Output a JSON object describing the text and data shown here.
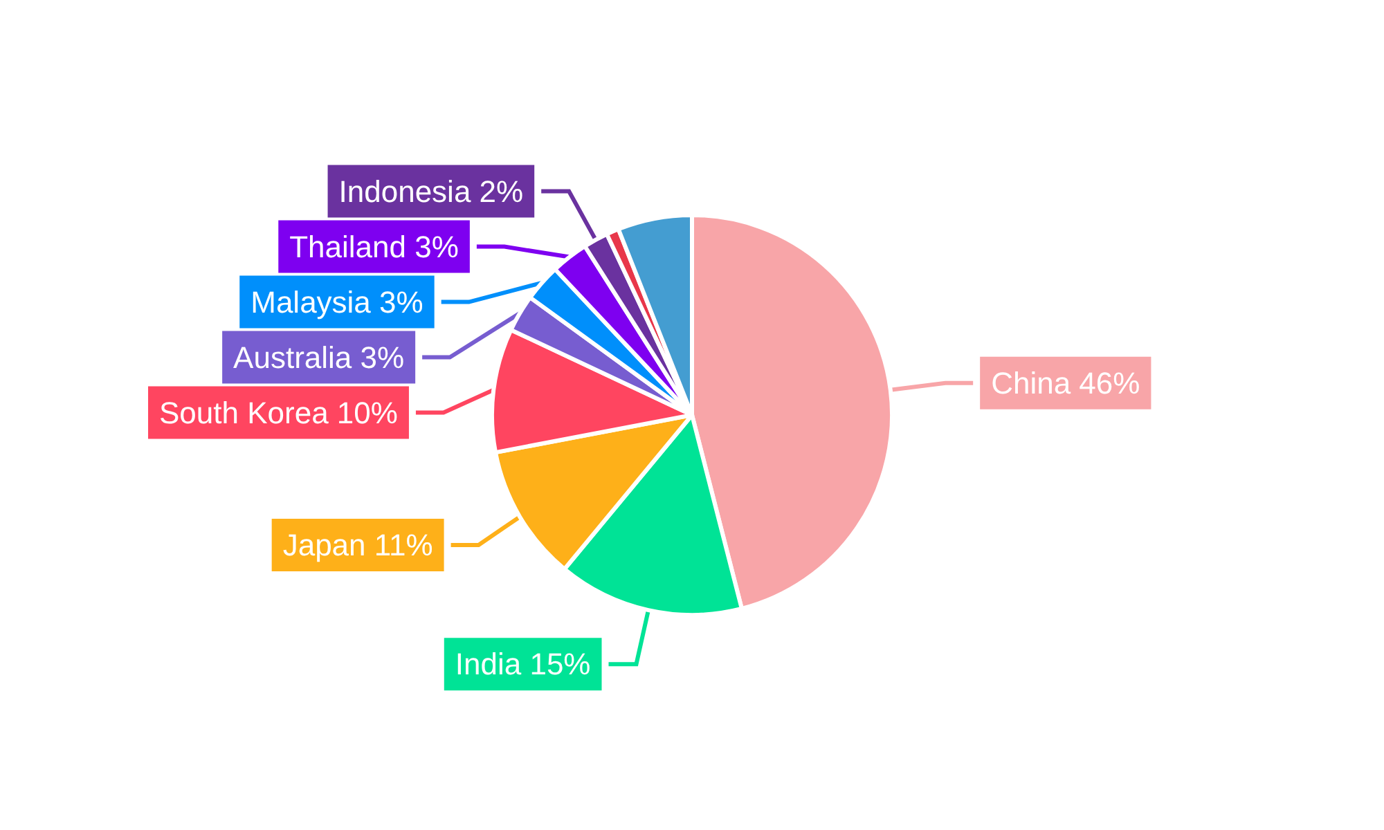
{
  "chart_data": {
    "type": "pie",
    "categories": [
      "China",
      "India",
      "Japan",
      "South Korea",
      "Australia",
      "Malaysia",
      "Thailand",
      "Indonesia",
      null,
      null
    ],
    "values": [
      46,
      15,
      11,
      10,
      3,
      3,
      3,
      2,
      1,
      6
    ],
    "value_labels": [
      "46%",
      "15%",
      "11%",
      "10%",
      "3%",
      "3%",
      "3%",
      "2%",
      null,
      null
    ],
    "colors": [
      "#f8a5a8",
      "#00e396",
      "#feb019",
      "#ff4560",
      "#775dd0",
      "#008ffb",
      "#7e00f0",
      "#6a329f",
      "#e8374a",
      "#449dd1"
    ],
    "legend": false
  }
}
